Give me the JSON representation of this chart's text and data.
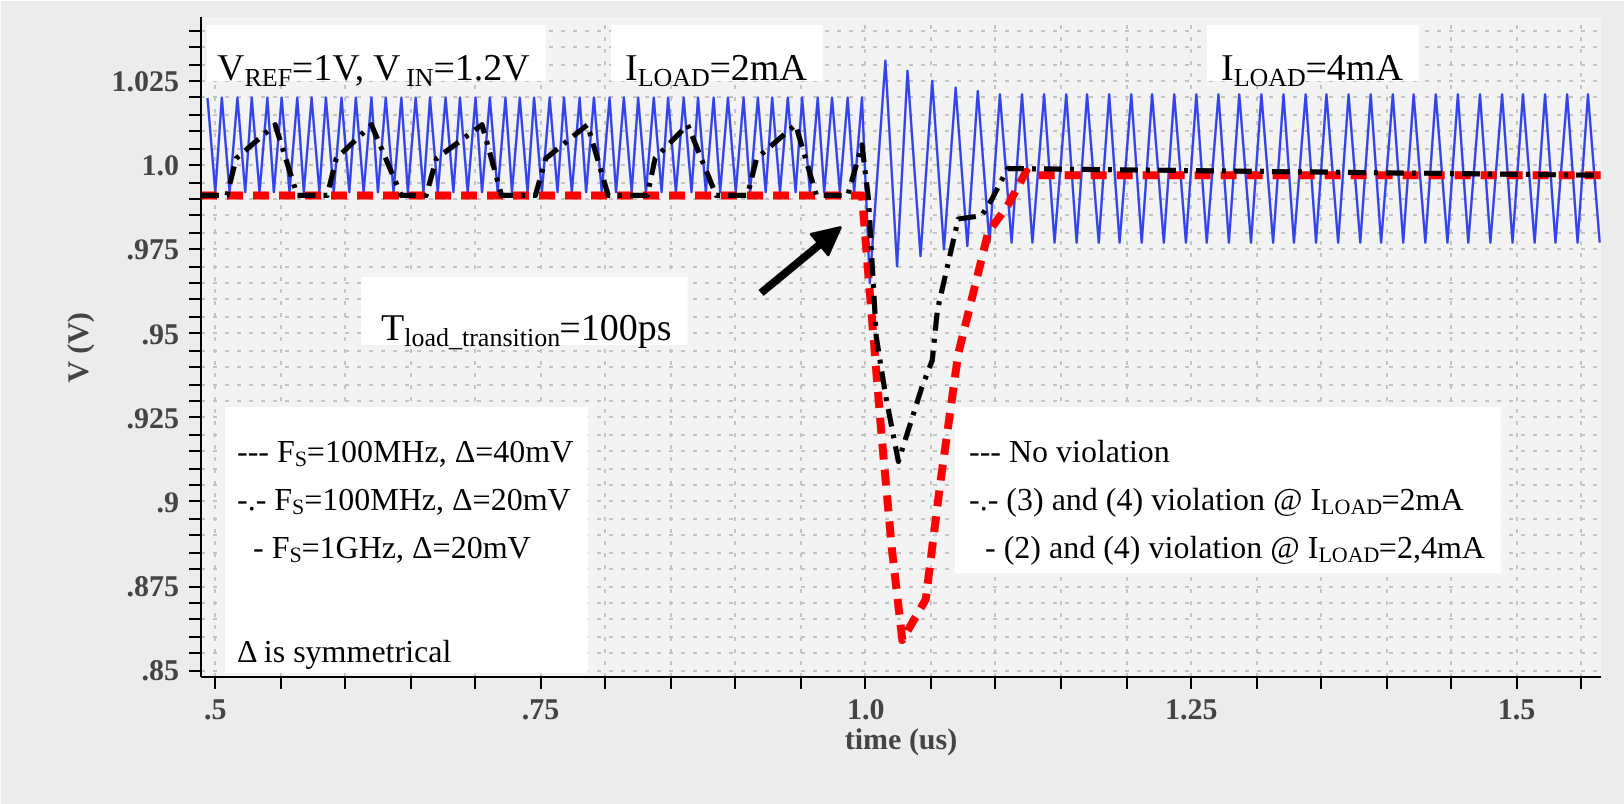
{
  "chart_data": {
    "type": "line",
    "xlabel": "time (us)",
    "ylabel": "V (V)",
    "xlim": [
      0.489,
      1.565
    ],
    "ylim": [
      0.848,
      1.044
    ],
    "xticks": [
      {
        "value": 0.5,
        "label": ".5"
      },
      {
        "value": 0.55,
        "label": null
      },
      {
        "value": 0.6,
        "label": null
      },
      {
        "value": 0.65,
        "label": null
      },
      {
        "value": 0.7,
        "label": null
      },
      {
        "value": 0.75,
        "label": ".75"
      },
      {
        "value": 0.8,
        "label": null
      },
      {
        "value": 0.85,
        "label": null
      },
      {
        "value": 0.9,
        "label": null
      },
      {
        "value": 0.95,
        "label": null
      },
      {
        "value": 1,
        "label": "1.0"
      },
      {
        "value": 1.05,
        "label": null
      },
      {
        "value": 1.1,
        "label": null
      },
      {
        "value": 1.15,
        "label": null
      },
      {
        "value": 1.2,
        "label": null
      },
      1.25,
      {
        "value": 1.3,
        "label": null
      },
      {
        "value": 1.35,
        "label": null
      },
      {
        "value": 1.4,
        "label": null
      },
      {
        "value": 1.45,
        "label": null
      },
      1.5,
      {
        "value": 1.55,
        "label": null
      }
    ],
    "yticks": [
      {
        "value": 0.85,
        "label": ".85"
      },
      {
        "value": 0.855,
        "label": null
      },
      {
        "value": 0.86,
        "label": null
      },
      {
        "value": 0.865,
        "label": null
      },
      {
        "value": 0.87,
        "label": null
      },
      {
        "value": 0.875,
        "label": ".875"
      },
      {
        "value": 0.88,
        "label": null
      },
      {
        "value": 0.885,
        "label": null
      },
      {
        "value": 0.89,
        "label": null
      },
      {
        "value": 0.895,
        "label": null
      },
      {
        "value": 0.9,
        "label": ".9"
      },
      {
        "value": 0.905,
        "label": null
      },
      {
        "value": 0.91,
        "label": null
      },
      {
        "value": 0.915,
        "label": null
      },
      {
        "value": 0.92,
        "label": null
      },
      {
        "value": 0.925,
        "label": ".925"
      },
      {
        "value": 0.93,
        "label": null
      },
      {
        "value": 0.935,
        "label": null
      },
      {
        "value": 0.94,
        "label": null
      },
      {
        "value": 0.945,
        "label": null
      },
      {
        "value": 0.95,
        "label": ".95"
      },
      {
        "value": 0.955,
        "label": null
      },
      {
        "value": 0.96,
        "label": null
      },
      {
        "value": 0.965,
        "label": null
      },
      {
        "value": 0.97,
        "label": null
      },
      {
        "value": 0.975,
        "label": ".975"
      },
      {
        "value": 0.98,
        "label": null
      },
      {
        "value": 0.985,
        "label": null
      },
      {
        "value": 0.99,
        "label": null
      },
      {
        "value": 0.995,
        "label": null
      },
      {
        "value": 1,
        "label": "1.0"
      },
      {
        "value": 1.005,
        "label": null
      },
      {
        "value": 1.01,
        "label": null
      },
      {
        "value": 1.015,
        "label": null
      },
      {
        "value": 1.02,
        "label": null
      },
      1.025,
      {
        "value": 1.03,
        "label": null
      },
      {
        "value": 1.035,
        "label": null
      },
      {
        "value": 1.04,
        "label": null
      }
    ],
    "grid": true,
    "series": [
      {
        "color": "#3344ee",
        "line_style": "solid",
        "x": [
          0.494,
          0.5,
          0.505,
          0.511,
          0.517,
          0.523,
          0.528,
          0.534,
          0.54,
          0.545,
          0.551,
          0.557,
          0.563,
          0.568,
          0.574,
          0.58,
          0.585,
          0.591,
          0.597,
          0.603,
          0.608,
          0.614,
          0.62,
          0.625,
          0.631,
          0.637,
          0.643,
          0.648,
          0.654,
          0.66,
          0.665,
          0.671,
          0.677,
          0.683,
          0.688,
          0.694,
          0.7,
          0.705,
          0.711,
          0.717,
          0.723,
          0.728,
          0.734,
          0.74,
          0.745,
          0.751,
          0.757,
          0.763,
          0.768,
          0.774,
          0.78,
          0.785,
          0.791,
          0.797,
          0.803,
          0.808,
          0.814,
          0.82,
          0.825,
          0.831,
          0.837,
          0.843,
          0.848,
          0.854,
          0.86,
          0.866,
          0.871,
          0.877,
          0.883,
          0.888,
          0.894,
          0.9,
          0.906,
          0.911,
          0.917,
          0.923,
          0.928,
          0.934,
          0.94,
          0.946,
          0.951,
          0.957,
          0.963,
          0.968,
          0.974,
          0.98,
          0.986,
          0.991,
          0.997,
          1.003,
          1.015,
          1.024,
          1.032,
          1.042,
          1.051,
          1.06,
          1.069,
          1.078,
          1.086,
          1.095,
          1.103,
          1.112,
          1.12,
          1.128,
          1.137,
          1.145,
          1.154,
          1.162,
          1.17,
          1.179,
          1.187,
          1.195,
          1.204,
          1.212,
          1.22,
          1.229,
          1.237,
          1.246,
          1.254,
          1.262,
          1.271,
          1.279,
          1.287,
          1.296,
          1.304,
          1.313,
          1.321,
          1.329,
          1.338,
          1.346,
          1.354,
          1.363,
          1.371,
          1.38,
          1.388,
          1.396,
          1.405,
          1.413,
          1.421,
          1.43,
          1.438,
          1.447,
          1.455,
          1.463,
          1.472,
          1.48,
          1.489,
          1.497,
          1.505,
          1.514,
          1.522,
          1.53,
          1.539,
          1.547,
          1.555,
          1.564
        ],
        "values": [
          1.02,
          0.992,
          1.02,
          0.992,
          1.02,
          0.992,
          1.02,
          0.992,
          1.02,
          0.992,
          1.02,
          0.992,
          1.02,
          0.992,
          1.02,
          0.992,
          1.02,
          0.992,
          1.02,
          0.992,
          1.02,
          0.992,
          1.02,
          0.992,
          1.02,
          0.992,
          1.02,
          0.992,
          1.02,
          0.992,
          1.02,
          0.992,
          1.02,
          0.992,
          1.02,
          0.992,
          1.02,
          0.992,
          1.02,
          0.992,
          1.02,
          0.992,
          1.02,
          0.992,
          1.02,
          0.992,
          1.02,
          0.992,
          1.02,
          0.992,
          1.02,
          0.992,
          1.02,
          0.992,
          1.02,
          0.992,
          1.02,
          0.992,
          1.02,
          0.992,
          1.02,
          0.992,
          1.02,
          0.992,
          1.02,
          0.992,
          1.02,
          0.992,
          1.02,
          0.992,
          1.02,
          0.992,
          1.02,
          0.992,
          1.02,
          0.992,
          1.02,
          0.992,
          1.02,
          0.992,
          1.02,
          0.992,
          1.02,
          0.992,
          1.02,
          0.992,
          1.02,
          0.992,
          1.02,
          0.965,
          1.031,
          0.97,
          1.028,
          0.973,
          1.025,
          0.975,
          1.023,
          0.976,
          1.022,
          0.977,
          1.021,
          0.977,
          1.021,
          0.977,
          1.021,
          0.977,
          1.021,
          0.977,
          1.021,
          0.977,
          1.021,
          0.977,
          1.021,
          0.977,
          1.021,
          0.977,
          1.021,
          0.977,
          1.021,
          0.977,
          1.021,
          0.977,
          1.021,
          0.977,
          1.021,
          0.977,
          1.021,
          0.977,
          1.021,
          0.977,
          1.021,
          0.977,
          1.021,
          0.977,
          1.021,
          0.977,
          1.021,
          0.977,
          1.021,
          0.977,
          1.021,
          0.977,
          1.021,
          0.977,
          1.021,
          0.977,
          1.021,
          0.977,
          1.021,
          0.977,
          1.021,
          0.977,
          1.021,
          0.977,
          1.021,
          0.977
        ]
      },
      {
        "color": "#ff0000",
        "line_style": "dashed",
        "x": [
          0.489,
          0.997,
          1.002,
          1.012,
          1.02,
          1.028,
          1.046,
          1.057,
          1.071,
          1.094,
          1.109,
          1.123,
          1.128,
          1.565
        ],
        "values": [
          0.991,
          0.991,
          0.967,
          0.92,
          0.886,
          0.859,
          0.871,
          0.905,
          0.944,
          0.98,
          0.988,
          0.998,
          0.997,
          0.997
        ]
      },
      {
        "color": "#000000",
        "line_style": "dashdot",
        "x": [
          0.489,
          0.509,
          0.516,
          0.546,
          0.563,
          0.586,
          0.593,
          0.62,
          0.643,
          0.662,
          0.67,
          0.705,
          0.72,
          0.746,
          0.754,
          0.786,
          0.802,
          0.832,
          0.838,
          0.863,
          0.885,
          0.909,
          0.916,
          0.946,
          0.962,
          0.986,
          0.997,
          1.002,
          1.008,
          1.015,
          1.025,
          1.043,
          1.051,
          1.055,
          1.071,
          1.089,
          1.097,
          1.109,
          1.565
        ],
        "values": [
          0.991,
          0.991,
          1.002,
          1.012,
          0.991,
          0.991,
          1.002,
          1.012,
          0.991,
          0.991,
          1.002,
          1.012,
          0.991,
          0.991,
          1.002,
          1.012,
          0.991,
          0.991,
          1.002,
          1.012,
          0.991,
          0.991,
          1.002,
          1.012,
          0.991,
          0.991,
          1.006,
          0.99,
          0.949,
          0.932,
          0.912,
          0.934,
          0.942,
          0.957,
          0.984,
          0.985,
          0.99,
          0.999,
          0.997
        ]
      }
    ],
    "annotations": [
      "V$_{REF}$=1V, V$_{IN}$=1.2V",
      "I$_{LOAD}$=2mA",
      "I$_{LOAD}$=4mA",
      "T$_{load_transition}$=100ps",
      "--- F$_{S}$=100MHz, Δ=40mV",
      "-.- F$_{S}$=100MHz, Δ=20mV",
      "- F$_{S}$=1GHz, Δ=20mV",
      "Δ is symmetrical",
      "--- No violation",
      "-.- (3) and (4) violation @ I$_{LOAD}$=2mA",
      "- (2) and (4) violation @ I$_{LOAD}$=2,4mA"
    ]
  }
}
